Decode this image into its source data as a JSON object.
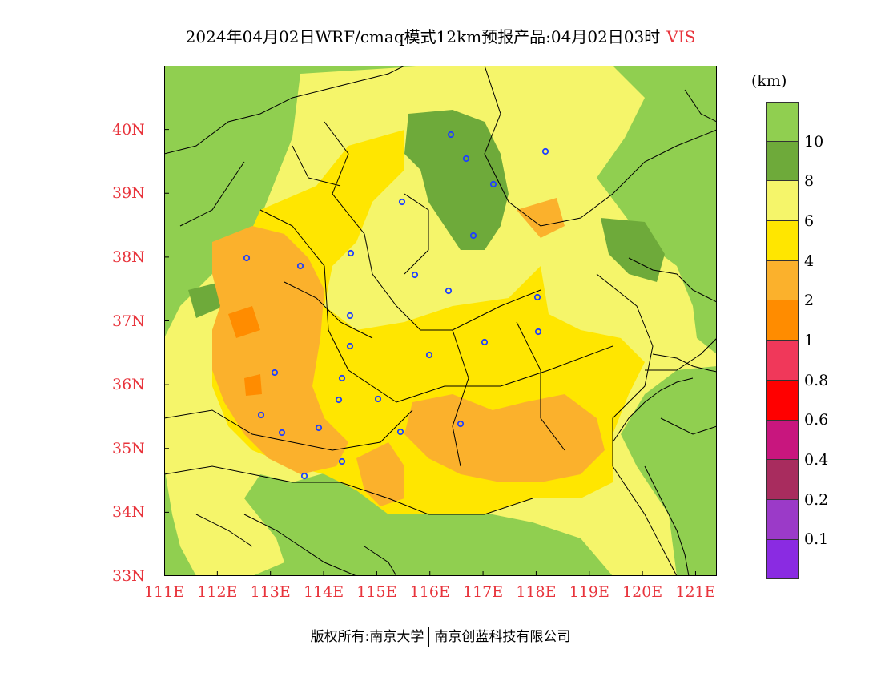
{
  "header": {
    "title": "2024年04月02日WRF/cmaq模式12km预报产品:04月02日03时",
    "variable": "VIS"
  },
  "map": {
    "x_axis_labels": [
      "111E",
      "112E",
      "113E",
      "114E",
      "115E",
      "116E",
      "117E",
      "118E",
      "119E",
      "120E",
      "121E"
    ],
    "y_axis_labels": [
      "33N",
      "34N",
      "35N",
      "36N",
      "37N",
      "38N",
      "39N",
      "40N"
    ],
    "lon_range": [
      111,
      121.4
    ],
    "lat_range": [
      33,
      41
    ]
  },
  "legend": {
    "unit": "(km)",
    "colors": [
      "#90cf50",
      "#6eaa3a",
      "#f5f56a",
      "#ffe600",
      "#fbb12c",
      "#ff8c00",
      "#f0385a",
      "#ff0000",
      "#c8167e",
      "#a82c5e",
      "#9b3ac8",
      "#8a2be2"
    ],
    "labels": [
      "10",
      "8",
      "6",
      "4",
      "2",
      "1",
      "0.8",
      "0.6",
      "0.4",
      "0.2",
      "0.1"
    ]
  },
  "footer": {
    "copyright": "版权所有:南京大学",
    "company": "南京创蓝科技有限公司"
  }
}
